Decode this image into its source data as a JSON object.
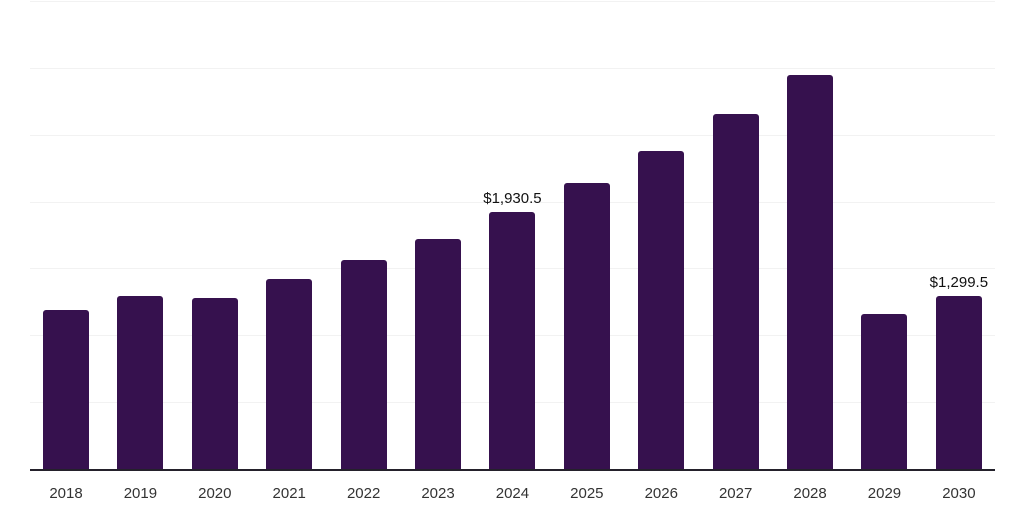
{
  "chart_data": {
    "type": "bar",
    "categories": [
      "2018",
      "2019",
      "2020",
      "2021",
      "2022",
      "2023",
      "2024",
      "2025",
      "2026",
      "2027",
      "2028",
      "2029",
      "2030"
    ],
    "values": [
      1200,
      1305,
      1288,
      1425,
      1571,
      1731,
      1930.5,
      2150,
      2388,
      2660,
      2955,
      1168,
      1299.5
    ],
    "data_labels": [
      "",
      "",
      "",
      "",
      "",
      "",
      "$1,930.5",
      "",
      "",
      "",
      "",
      "",
      "$1,299.5"
    ],
    "title": "",
    "xlabel": "",
    "ylabel": "",
    "ylim": [
      0,
      3500
    ],
    "gridline_step": 500,
    "grid": true,
    "legend_position": "none",
    "colors": {
      "bar": "#36114E",
      "axis_line": "#24212B",
      "gridline": "#F2F2F2",
      "tick_label": "#333333",
      "data_label": "#111111"
    }
  }
}
